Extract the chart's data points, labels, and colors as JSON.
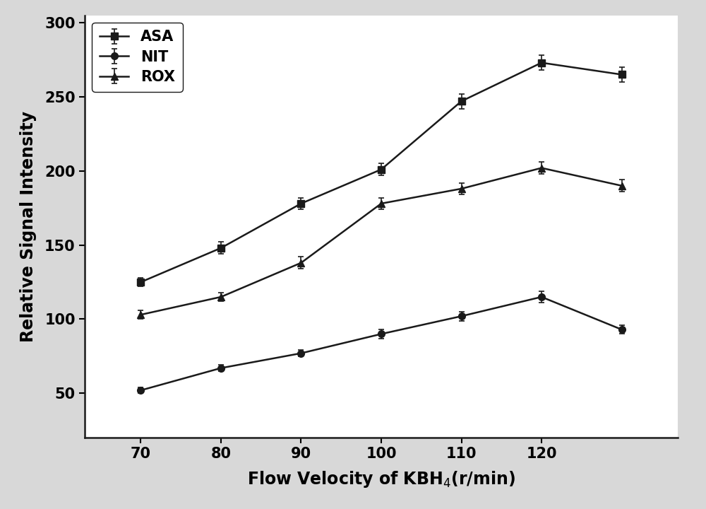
{
  "x": [
    70,
    80,
    90,
    100,
    110,
    120,
    130
  ],
  "ASA_y": [
    125,
    148,
    178,
    201,
    247,
    273,
    265
  ],
  "ASA_yerr": [
    3,
    4,
    4,
    4,
    5,
    5,
    5
  ],
  "NIT_y": [
    52,
    67,
    77,
    90,
    102,
    115,
    93
  ],
  "NIT_yerr": [
    2,
    2,
    2,
    3,
    3,
    4,
    3
  ],
  "ROX_y": [
    103,
    115,
    138,
    178,
    188,
    202,
    190
  ],
  "ROX_yerr": [
    3,
    3,
    4,
    4,
    4,
    4,
    4
  ],
  "xlabel": "Flow Velocity of KBH$_4$(r/min)",
  "ylabel": "Relative Signal Intensity",
  "ylim": [
    20,
    305
  ],
  "xlim": [
    63,
    137
  ],
  "yticks": [
    50,
    100,
    150,
    200,
    250,
    300
  ],
  "xticks": [
    70,
    80,
    90,
    100,
    110,
    120
  ],
  "legend_labels": [
    "ASA",
    "NIT",
    "ROX"
  ],
  "line_color": "#1a1a1a",
  "marker_ASA": "s",
  "marker_NIT": "o",
  "marker_ROX": "^",
  "linewidth": 1.8,
  "markersize": 7,
  "plot_bg_color": "#ffffff",
  "fig_bg_color": "#d8d8d8",
  "axis_fontsize": 17,
  "tick_fontsize": 15,
  "legend_fontsize": 15
}
